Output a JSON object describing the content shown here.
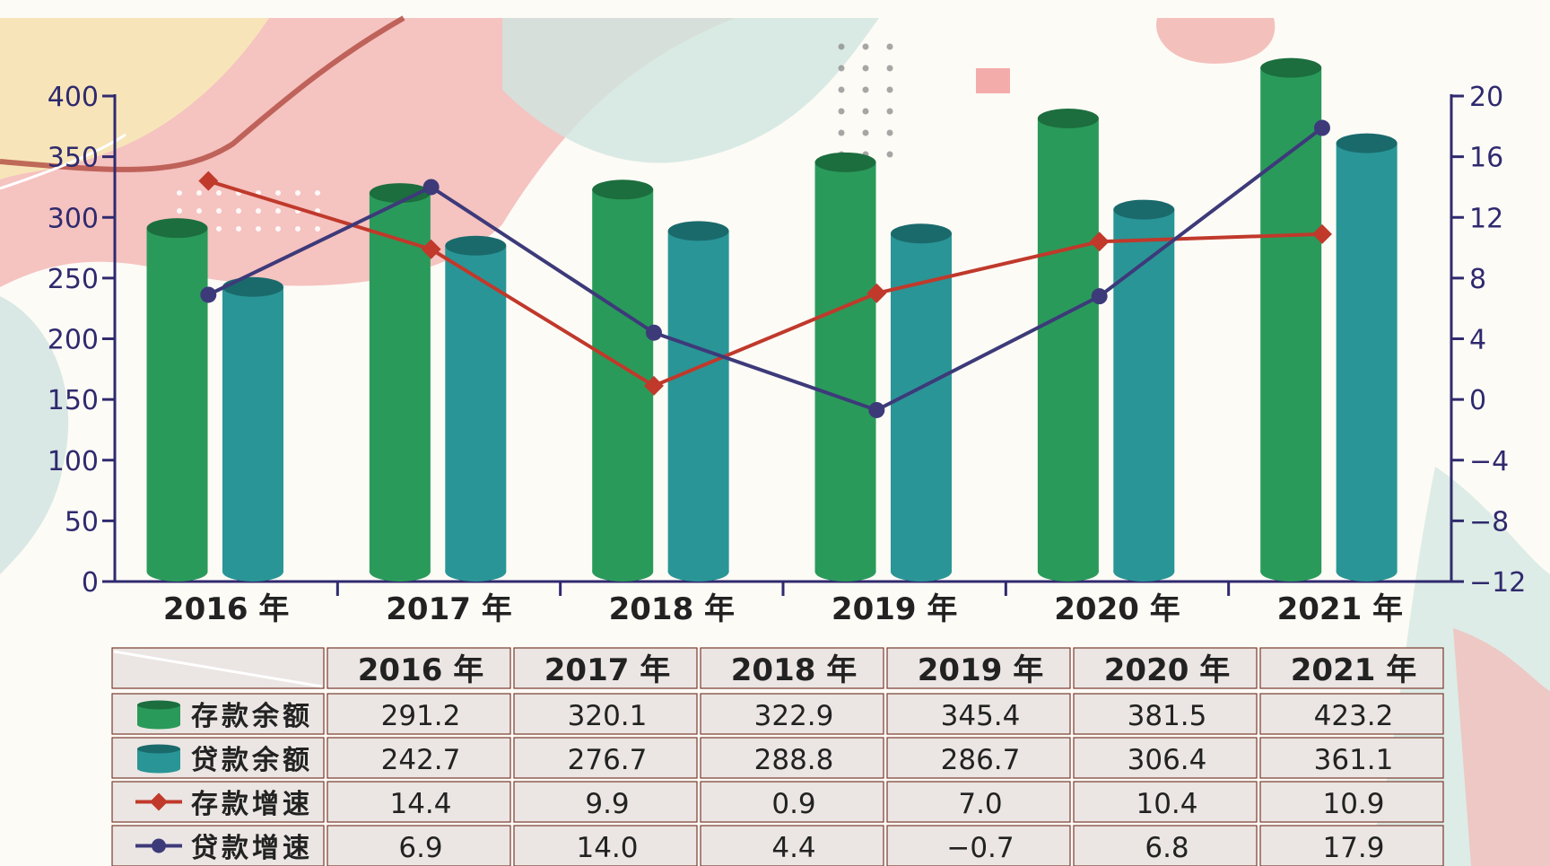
{
  "colors": {
    "deposit_bar": "#2a9a5a",
    "deposit_bar_top": "#1c6e3e",
    "loan_bar": "#2a9596",
    "loan_bar_top": "#1a6a6c",
    "deposit_line": "#c0392b",
    "loan_line": "#3d3a7a",
    "axis": "#2f2a6e",
    "table_cell": "#ebe6e3",
    "table_border": "#7a3a2e",
    "text": "#222222"
  },
  "chart_data": {
    "type": "bar",
    "title": "",
    "categories": [
      "2016 年",
      "2017 年",
      "2018 年",
      "2019 年",
      "2020 年",
      "2021 年"
    ],
    "series": [
      {
        "name": "存款余额",
        "kind": "bar",
        "axis": "left",
        "values": [
          291.2,
          320.1,
          322.9,
          345.4,
          381.5,
          423.2
        ]
      },
      {
        "name": "贷款余额",
        "kind": "bar",
        "axis": "left",
        "values": [
          242.7,
          276.7,
          288.8,
          286.7,
          306.4,
          361.1
        ]
      },
      {
        "name": "存款增速",
        "kind": "line",
        "axis": "right",
        "values": [
          14.4,
          9.9,
          0.9,
          7.0,
          10.4,
          10.9
        ]
      },
      {
        "name": "贷款增速",
        "kind": "line",
        "axis": "right",
        "values": [
          6.9,
          14.0,
          4.4,
          -0.7,
          6.8,
          17.9
        ]
      }
    ],
    "y_left": {
      "min": 0,
      "max": 400,
      "ticks": [
        "0",
        "50",
        "100",
        "150",
        "200",
        "250",
        "300",
        "350",
        "400"
      ]
    },
    "y_right": {
      "min": -12,
      "max": 20,
      "ticks": [
        "−12",
        "−8",
        "−4",
        "0",
        "4",
        "8",
        "12",
        "16",
        "20"
      ]
    },
    "legend": "table-below"
  },
  "table": {
    "header": [
      "2016 年",
      "2017 年",
      "2018 年",
      "2019 年",
      "2020 年",
      "2021 年"
    ],
    "rows": [
      {
        "label": "存款余额",
        "icon": "green-cylinder-icon",
        "cells": [
          "291.2",
          "320.1",
          "322.9",
          "345.4",
          "381.5",
          "423.2"
        ]
      },
      {
        "label": "贷款余额",
        "icon": "teal-cylinder-icon",
        "cells": [
          "242.7",
          "276.7",
          "288.8",
          "286.7",
          "306.4",
          "361.1"
        ]
      },
      {
        "label": "存款增速",
        "icon": "red-diamond-line-icon",
        "cells": [
          "14.4",
          "9.9",
          "0.9",
          "7.0",
          "10.4",
          "10.9"
        ]
      },
      {
        "label": "贷款增速",
        "icon": "blue-circle-line-icon",
        "cells": [
          "6.9",
          "14.0",
          "4.4",
          "−0.7",
          "6.8",
          "17.9"
        ]
      }
    ]
  }
}
